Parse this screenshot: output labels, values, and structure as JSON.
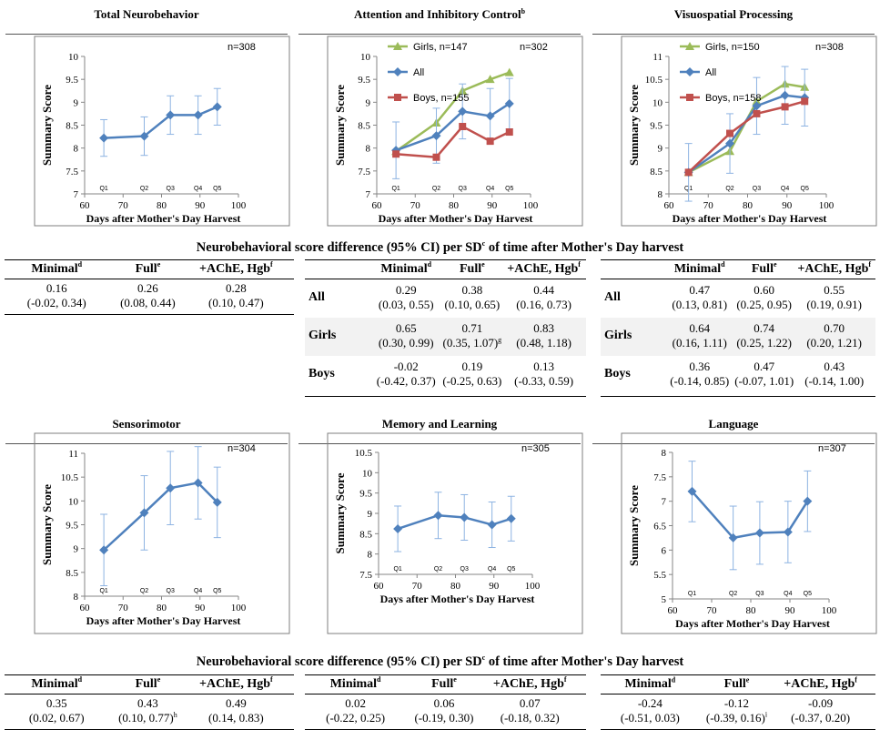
{
  "panels": [
    {
      "title": "Total Neurobehavior",
      "title_sup": "",
      "n_label": "n=308",
      "ylabel": "Summary Score",
      "xlabel": "Days after Mother's Day Harvest",
      "ylim": [
        7,
        10
      ],
      "yticks": [
        "7",
        "7.5",
        "8",
        "8.5",
        "9",
        "9.5",
        "10"
      ],
      "ystep": 0.5,
      "xlim": [
        60,
        100
      ],
      "xticks": [
        "60",
        "70",
        "80",
        "90",
        "100"
      ],
      "quintiles": [
        "Q1",
        "Q2",
        "Q3",
        "Q4",
        "Q5"
      ],
      "legend": [],
      "chart_data": {
        "type": "line",
        "x": [
          65,
          75.5,
          82.3,
          89.5,
          94.5
        ],
        "series": [
          {
            "values": [
              8.22,
              8.26,
              8.72,
              8.72,
              8.9
            ],
            "err": [
              0.4,
              0.42,
              0.42,
              0.42,
              0.4
            ],
            "color": "#4f81bd",
            "marker": "diamond"
          }
        ]
      }
    },
    {
      "title": "Attention and Inhibitory Control",
      "title_sup": "b",
      "n_label": "n=302",
      "ylabel": "Summary Score",
      "xlabel": "Days after Mother's Day Harvest",
      "ylim": [
        7,
        10
      ],
      "yticks": [
        "7",
        "7.5",
        "8",
        "8.5",
        "9",
        "9.5",
        "10"
      ],
      "ystep": 0.5,
      "xlim": [
        60,
        100
      ],
      "xticks": [
        "60",
        "70",
        "80",
        "90",
        "100"
      ],
      "quintiles": [
        "Q1",
        "Q2",
        "Q3",
        "Q4",
        "Q5"
      ],
      "legend": [
        {
          "label": "Girls, n=147",
          "color": "#9bbb59",
          "marker": "triangle"
        },
        {
          "label": "All",
          "color": "#4f81bd",
          "marker": "diamond"
        },
        {
          "label": "Boys, n=155",
          "color": "#c0504d",
          "marker": "square"
        }
      ],
      "chart_data": {
        "type": "line",
        "x": [
          65,
          75.5,
          82.3,
          89.5,
          94.5
        ],
        "series": [
          {
            "values": [
              7.93,
              8.55,
              9.25,
              9.5,
              9.65
            ],
            "err": [],
            "color": "#9bbb59",
            "marker": "triangle"
          },
          {
            "values": [
              7.95,
              8.27,
              8.8,
              8.7,
              8.97
            ],
            "err": [
              0.62,
              0.6,
              0.6,
              0.6,
              0.55
            ],
            "color": "#4f81bd",
            "marker": "diamond"
          },
          {
            "values": [
              7.87,
              7.8,
              8.47,
              8.15,
              8.35
            ],
            "err": [],
            "color": "#c0504d",
            "marker": "square"
          }
        ]
      }
    },
    {
      "title": "Visuospatial Processing",
      "title_sup": "",
      "n_label": "n=308",
      "ylabel": "Summary Score",
      "xlabel": "Days after Mother's Day Harvest",
      "ylim": [
        8,
        11
      ],
      "yticks": [
        "8",
        "8.5",
        "9",
        "9.5",
        "10",
        "10.5",
        "11"
      ],
      "ystep": 0.5,
      "xlim": [
        60,
        100
      ],
      "xticks": [
        "60",
        "70",
        "80",
        "90",
        "100"
      ],
      "quintiles": [
        "Q1",
        "Q2",
        "Q3",
        "Q4",
        "Q5"
      ],
      "legend": [
        {
          "label": "Girls, n=150",
          "color": "#9bbb59",
          "marker": "triangle"
        },
        {
          "label": "All",
          "color": "#4f81bd",
          "marker": "diamond"
        },
        {
          "label": "Boys, n=158",
          "color": "#c0504d",
          "marker": "square"
        }
      ],
      "chart_data": {
        "type": "line",
        "x": [
          65,
          75.5,
          82.3,
          89.5,
          94.5
        ],
        "series": [
          {
            "values": [
              8.47,
              8.93,
              10.02,
              10.4,
              10.33
            ],
            "err": [],
            "color": "#9bbb59",
            "marker": "triangle"
          },
          {
            "values": [
              8.47,
              9.1,
              9.92,
              10.15,
              10.1
            ],
            "err": [
              0.63,
              0.65,
              0.62,
              0.63,
              0.62
            ],
            "color": "#4f81bd",
            "marker": "diamond"
          },
          {
            "values": [
              8.47,
              9.32,
              9.75,
              9.9,
              10.02
            ],
            "err": [],
            "color": "#c0504d",
            "marker": "square"
          }
        ]
      }
    },
    {
      "title": "Sensorimotor",
      "title_sup": "",
      "n_label": "n=304",
      "ylabel": "Summary Score",
      "xlabel": "Days after Mother's Day Harvest",
      "ylim": [
        8,
        11
      ],
      "yticks": [
        "8",
        "8.5",
        "9",
        "9.5",
        "10",
        "10.5",
        "11"
      ],
      "ystep": 0.5,
      "xlim": [
        60,
        100
      ],
      "xticks": [
        "60",
        "70",
        "80",
        "90",
        "100"
      ],
      "quintiles": [
        "Q1",
        "Q2",
        "Q3",
        "Q4",
        "Q5"
      ],
      "legend": [],
      "chart_data": {
        "type": "line",
        "x": [
          65,
          75.5,
          82.3,
          89.5,
          94.5
        ],
        "series": [
          {
            "values": [
              8.97,
              9.75,
              10.27,
              10.38,
              9.97
            ],
            "err": [
              0.75,
              0.78,
              0.77,
              0.76,
              0.74
            ],
            "color": "#4f81bd",
            "marker": "diamond"
          }
        ]
      }
    },
    {
      "title": "Memory and Learning",
      "title_sup": "",
      "n_label": "n=305",
      "ylabel": "Summary Score",
      "xlabel": "Days after Mother's Day Harvest",
      "ylim": [
        7.5,
        10.5
      ],
      "yticks": [
        "7.5",
        "8",
        "8.5",
        "9",
        "9.5",
        "10",
        "10.5"
      ],
      "ystep": 0.5,
      "xlim": [
        60,
        100
      ],
      "xticks": [
        "60",
        "70",
        "80",
        "90",
        "100"
      ],
      "quintiles": [
        "Q1",
        "Q2",
        "Q3",
        "Q4",
        "Q5"
      ],
      "legend": [],
      "chart_data": {
        "type": "line",
        "x": [
          65,
          75.5,
          82.3,
          89.5,
          94.5
        ],
        "series": [
          {
            "values": [
              8.62,
              8.95,
              8.9,
              8.72,
              8.87
            ],
            "err": [
              0.56,
              0.57,
              0.56,
              0.56,
              0.55
            ],
            "color": "#4f81bd",
            "marker": "diamond"
          }
        ]
      }
    },
    {
      "title": "Language",
      "title_sup": "",
      "n_label": "n=307",
      "ylabel": "Summary Score",
      "xlabel": "Days after Mother's Day Harvest",
      "ylim": [
        5,
        8
      ],
      "yticks": [
        "5",
        "5.5",
        "6",
        "6.5",
        "7",
        "7.5",
        "8"
      ],
      "ystep": 0.5,
      "xlim": [
        60,
        100
      ],
      "xticks": [
        "60",
        "70",
        "80",
        "90",
        "100"
      ],
      "quintiles": [
        "Q1",
        "Q2",
        "Q3",
        "Q4",
        "Q5"
      ],
      "legend": [],
      "chart_data": {
        "type": "line",
        "x": [
          65,
          75.5,
          82.3,
          89.5,
          94.5
        ],
        "series": [
          {
            "values": [
              7.2,
              6.25,
              6.35,
              6.37,
              7.0
            ],
            "err": [
              0.62,
              0.65,
              0.64,
              0.63,
              0.62
            ],
            "color": "#4f81bd",
            "marker": "diamond"
          }
        ]
      }
    }
  ],
  "tables": {
    "title_before": "Neurobehavioral score difference (95% CI) per SD",
    "title_sup": "c",
    "title_after": " of time after Mother's Day harvest",
    "headers": [
      {
        "text": "Minimal",
        "sup": "d"
      },
      {
        "text": "Full",
        "sup": "e"
      },
      {
        "text": "+AChE, Hgb",
        "sup": "f"
      }
    ],
    "row_labels": [
      "All",
      "Girls",
      "Boys"
    ],
    "top": [
      {
        "rows": [
          [
            {
              "v": "0.16",
              "ci": "(-0.02, 0.34)",
              "s": ""
            },
            {
              "v": "0.26",
              "ci": "(0.08, 0.44)",
              "s": ""
            },
            {
              "v": "0.28",
              "ci": "(0.10, 0.47)",
              "s": ""
            }
          ]
        ]
      },
      {
        "rows": [
          [
            {
              "v": "0.29",
              "ci": "(0.03, 0.55)",
              "s": ""
            },
            {
              "v": "0.38",
              "ci": "(0.10, 0.65)",
              "s": ""
            },
            {
              "v": "0.44",
              "ci": "(0.16, 0.73)",
              "s": ""
            }
          ],
          [
            {
              "v": "0.65",
              "ci": "(0.30, 0.99)",
              "s": ""
            },
            {
              "v": "0.71",
              "ci": "(0.35, 1.07)",
              "s": "g"
            },
            {
              "v": "0.83",
              "ci": "(0.48, 1.18)",
              "s": ""
            }
          ],
          [
            {
              "v": "-0.02",
              "ci": "(-0.42, 0.37)",
              "s": ""
            },
            {
              "v": "0.19",
              "ci": "(-0.25, 0.63)",
              "s": ""
            },
            {
              "v": "0.13",
              "ci": "(-0.33, 0.59)",
              "s": ""
            }
          ]
        ]
      },
      {
        "rows": [
          [
            {
              "v": "0.47",
              "ci": "(0.13, 0.81)",
              "s": ""
            },
            {
              "v": "0.60",
              "ci": "(0.25, 0.95)",
              "s": ""
            },
            {
              "v": "0.55",
              "ci": "(0.19, 0.91)",
              "s": ""
            }
          ],
          [
            {
              "v": "0.64",
              "ci": "(0.16, 1.11)",
              "s": ""
            },
            {
              "v": "0.74",
              "ci": "(0.25, 1.22)",
              "s": ""
            },
            {
              "v": "0.70",
              "ci": "(0.20, 1.21)",
              "s": ""
            }
          ],
          [
            {
              "v": "0.36",
              "ci": "(-0.14, 0.85)",
              "s": ""
            },
            {
              "v": "0.47",
              "ci": "(-0.07, 1.01)",
              "s": ""
            },
            {
              "v": "0.43",
              "ci": "(-0.14, 1.00)",
              "s": ""
            }
          ]
        ]
      }
    ],
    "bottom": [
      {
        "rows": [
          [
            {
              "v": "0.35",
              "ci": "(0.02, 0.67)",
              "s": ""
            },
            {
              "v": "0.43",
              "ci": "(0.10, 0.77)",
              "s": "h"
            },
            {
              "v": "0.49",
              "ci": "(0.14, 0.83)",
              "s": ""
            }
          ]
        ]
      },
      {
        "rows": [
          [
            {
              "v": "0.02",
              "ci": "(-0.22, 0.25)",
              "s": ""
            },
            {
              "v": "0.06",
              "ci": "(-0.19, 0.30)",
              "s": ""
            },
            {
              "v": "0.07",
              "ci": "(-0.18, 0.32)",
              "s": ""
            }
          ]
        ]
      },
      {
        "rows": [
          [
            {
              "v": "-0.24",
              "ci": "(-0.51, 0.03)",
              "s": ""
            },
            {
              "v": "-0.12",
              "ci": "(-0.39, 0.16)",
              "s": "i"
            },
            {
              "v": "-0.09",
              "ci": "(-0.37, 0.20)",
              "s": ""
            }
          ]
        ]
      }
    ]
  }
}
